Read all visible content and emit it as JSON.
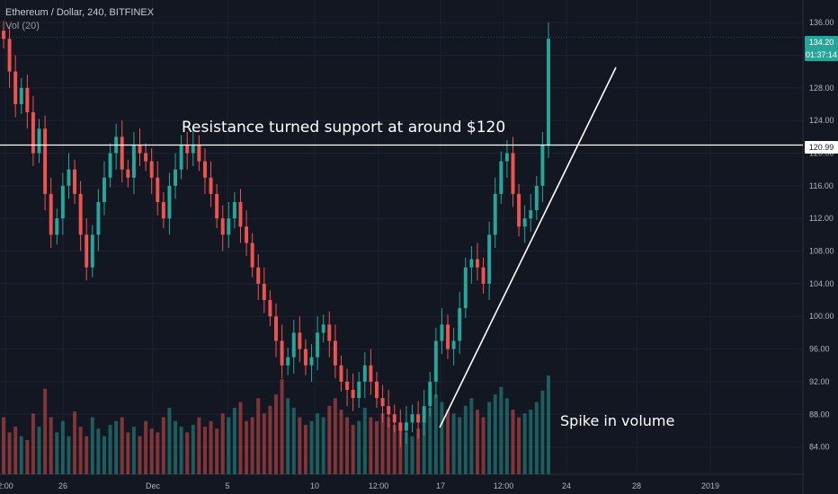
{
  "header": {
    "symbol_title": "Ethereum / Dollar, 240, BITFINEX",
    "volume_indicator": "Vol (20)"
  },
  "annotations": {
    "resistance": "Resistance turned support at around $120",
    "volume": "Spike in volume"
  },
  "price_tags": {
    "current_price": "134.20",
    "countdown": "01:37:14",
    "level": "120.99"
  },
  "colors": {
    "background": "#131722",
    "up_candle": "#26a69a",
    "down_candle": "#ef5350",
    "grid": "#1e2230",
    "axis_text": "#b2b5be",
    "annotation": "#ffffff"
  },
  "chart_data": {
    "type": "candlestick",
    "title": "Ethereum / Dollar, 240, BITFINEX",
    "ylim": [
      80,
      137
    ],
    "y_ticks": [
      "84.00",
      "88.00",
      "92.00",
      "96.00",
      "100.00",
      "104.00",
      "108.00",
      "112.00",
      "116.00",
      "120.00",
      "124.00",
      "128.00",
      "132.00",
      "136.00"
    ],
    "x_ticks": [
      "2:00",
      "26",
      "Dec",
      "5",
      "10",
      "12:00",
      "17",
      "12:00",
      "24",
      "28",
      "2019"
    ],
    "horizontal_line": 120.99,
    "trendline": {
      "from": [
        87.5,
        "Dec 17"
      ],
      "to": [
        130,
        "Dec 25"
      ]
    },
    "close_series": [
      134,
      130,
      126,
      128,
      125,
      120,
      123,
      115,
      110,
      112,
      116,
      118,
      115,
      110,
      106,
      110,
      114,
      117,
      120,
      122,
      118,
      117,
      121,
      120,
      119,
      117,
      114,
      112,
      116,
      118,
      121,
      120,
      121,
      119,
      117,
      115,
      112,
      110,
      112,
      114,
      111,
      109,
      106,
      104,
      102,
      100,
      97,
      94,
      95,
      98,
      96,
      94,
      95,
      98,
      99,
      97,
      94,
      92,
      91,
      90,
      92,
      94,
      92,
      90,
      89,
      88,
      87,
      86,
      87,
      88,
      87,
      89,
      92,
      97,
      99,
      96,
      97,
      101,
      106,
      107,
      106,
      104,
      110,
      115,
      119,
      120,
      115,
      111,
      112,
      113,
      116,
      121,
      134
    ],
    "volume_series": [
      30,
      22,
      25,
      20,
      18,
      32,
      25,
      45,
      30,
      22,
      28,
      20,
      33,
      25,
      20,
      30,
      24,
      20,
      26,
      28,
      30,
      22,
      25,
      20,
      28,
      24,
      22,
      30,
      35,
      28,
      25,
      22,
      26,
      30,
      25,
      28,
      24,
      32,
      30,
      35,
      38,
      28,
      30,
      40,
      32,
      36,
      42,
      50,
      40,
      35,
      30,
      26,
      28,
      32,
      30,
      36,
      40,
      34,
      30,
      26,
      28,
      35,
      30,
      28,
      32,
      30,
      26,
      24,
      22,
      20,
      24,
      28,
      35,
      42,
      38,
      34,
      32,
      30,
      36,
      40,
      34,
      30,
      38,
      42,
      46,
      40,
      34,
      30,
      32,
      34,
      38,
      44,
      52
    ]
  }
}
